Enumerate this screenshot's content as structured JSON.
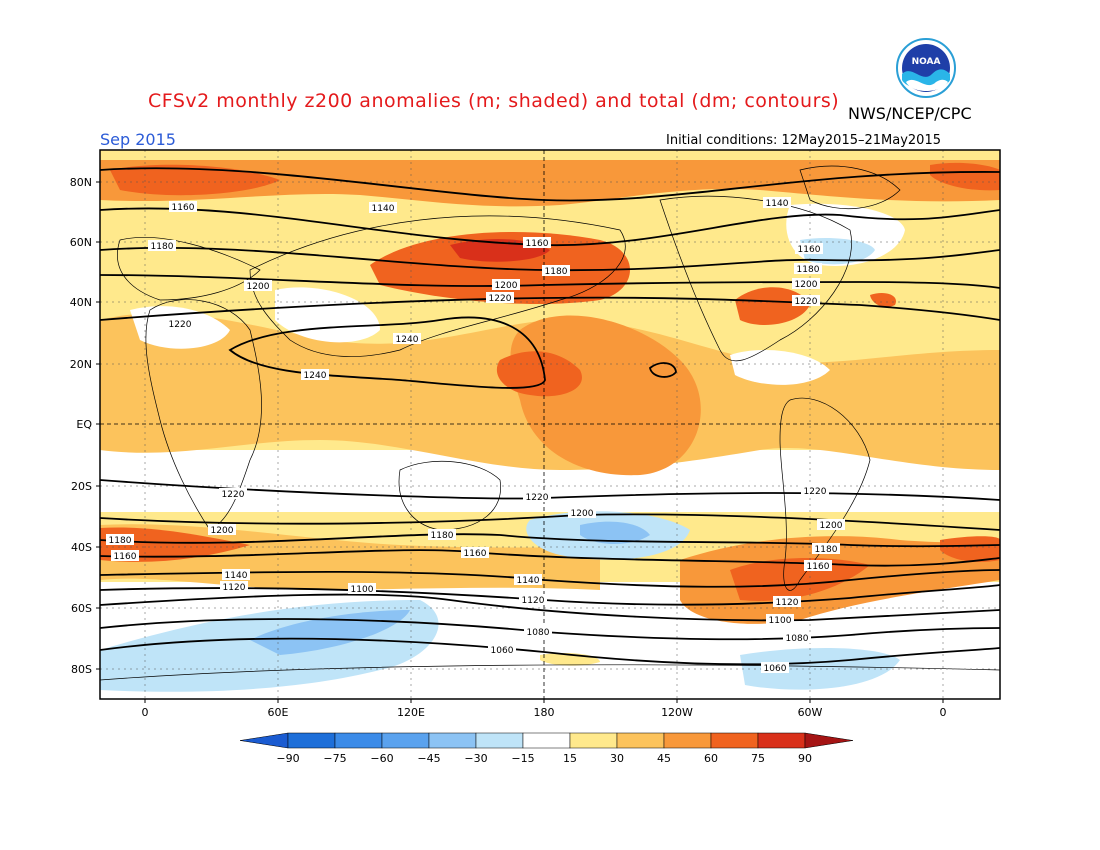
{
  "title": "CFSv2 monthly z200 anomalies (m; shaded) and total (dm; contours)",
  "agency": "NWS/NCEP/CPC",
  "logo_text": "NOAA",
  "month": "Sep 2015",
  "initial_conditions": "Initial conditions: 12May2015–21May2015",
  "lat_labels": [
    "80N",
    "60N",
    "40N",
    "20N",
    "EQ",
    "20S",
    "40S",
    "60S",
    "80S"
  ],
  "lon_labels": [
    "0",
    "60E",
    "120E",
    "180",
    "120W",
    "60W",
    "0"
  ],
  "colorbar": {
    "labels": [
      "−90",
      "−75",
      "−60",
      "−45",
      "−30",
      "−15",
      "15",
      "30",
      "45",
      "60",
      "75",
      "90"
    ],
    "colors": [
      "#1e6fd9",
      "#3b8be8",
      "#5aa2ee",
      "#8cc3f4",
      "#bfe4f8",
      "#ffffff",
      "#ffe98c",
      "#fcc35c",
      "#f8983a",
      "#f0631f",
      "#d9301a"
    ],
    "low_arrow_color": "#1a5bd1",
    "high_arrow_color": "#a51414"
  },
  "colors": {
    "pos_light": "#ffe98c",
    "pos_med": "#fcc35c",
    "pos_strong": "#f8983a",
    "pos_vstrong": "#f0631f",
    "pos_extreme": "#d9301a",
    "neg_light": "#bfe4f8",
    "neg_med": "#8cc3f4"
  },
  "contour_labels": {
    "c1140a": "1140",
    "c1140b": "1140",
    "c1160a": "1160",
    "c1160b": "1160",
    "c1160c": "1160",
    "c1180a": "1180",
    "c1180b": "1180",
    "c1180c": "1180",
    "c1200a": "1200",
    "c1200b": "1200",
    "c1200c": "1200",
    "c1220a": "1220",
    "c1220b": "1220",
    "c1220c": "1220",
    "c1240a": "1240",
    "c1240b": "1240",
    "s1220a": "1220",
    "s1220b": "1220",
    "s1220c": "1220",
    "s1200a": "1200",
    "s1200b": "1200",
    "s1200c": "1200",
    "s1180a": "1180",
    "s1180b": "1180",
    "s1180c": "1180",
    "s1160a": "1160",
    "s1160b": "1160",
    "s1160c": "1160",
    "s1140a": "1140",
    "s1140b": "1140",
    "s1120a": "1120",
    "s1120b": "1120",
    "s1120c": "1120",
    "s1100a": "1100",
    "s1100b": "1100",
    "s1080a": "1080",
    "s1080b": "1080",
    "s1060a": "1060",
    "s1060b": "1060"
  }
}
